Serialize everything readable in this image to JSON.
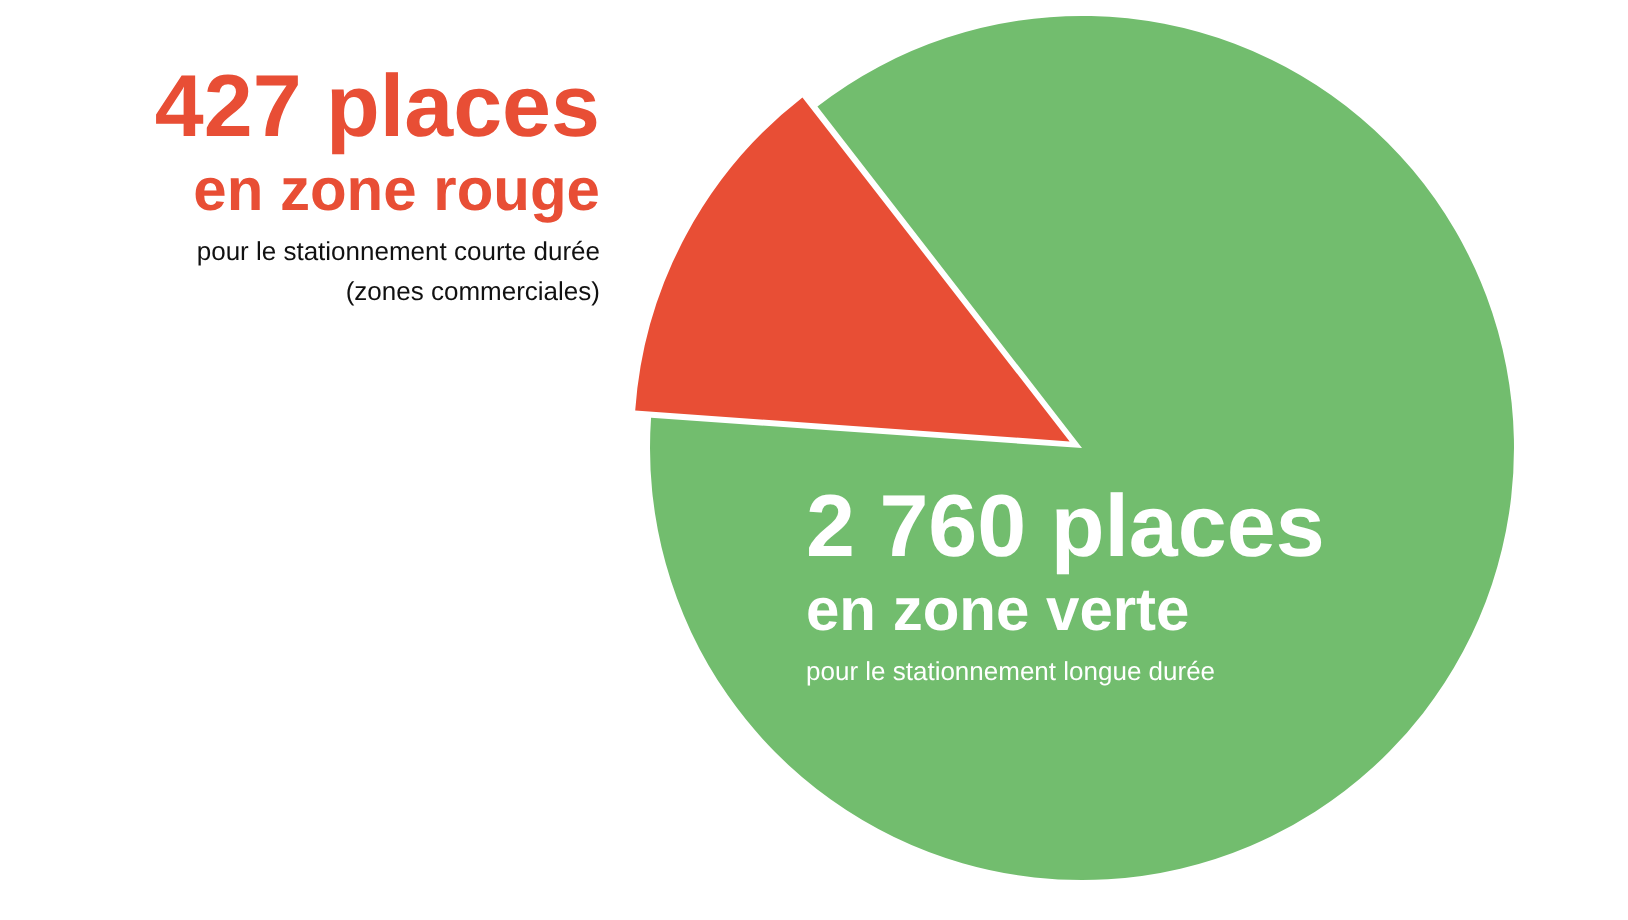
{
  "chart_data": {
    "type": "pie",
    "categories": [
      "en zone rouge",
      "en zone verte"
    ],
    "values": [
      427,
      2760
    ],
    "value_labels": [
      "427 places",
      "2 760 places"
    ],
    "colors": [
      "#e84e35",
      "#72bd6e"
    ],
    "annotations": [
      "pour le stationnement courte durée\n(zones commerciales)",
      "pour le stationnement longue durée"
    ],
    "legend": false
  }
}
